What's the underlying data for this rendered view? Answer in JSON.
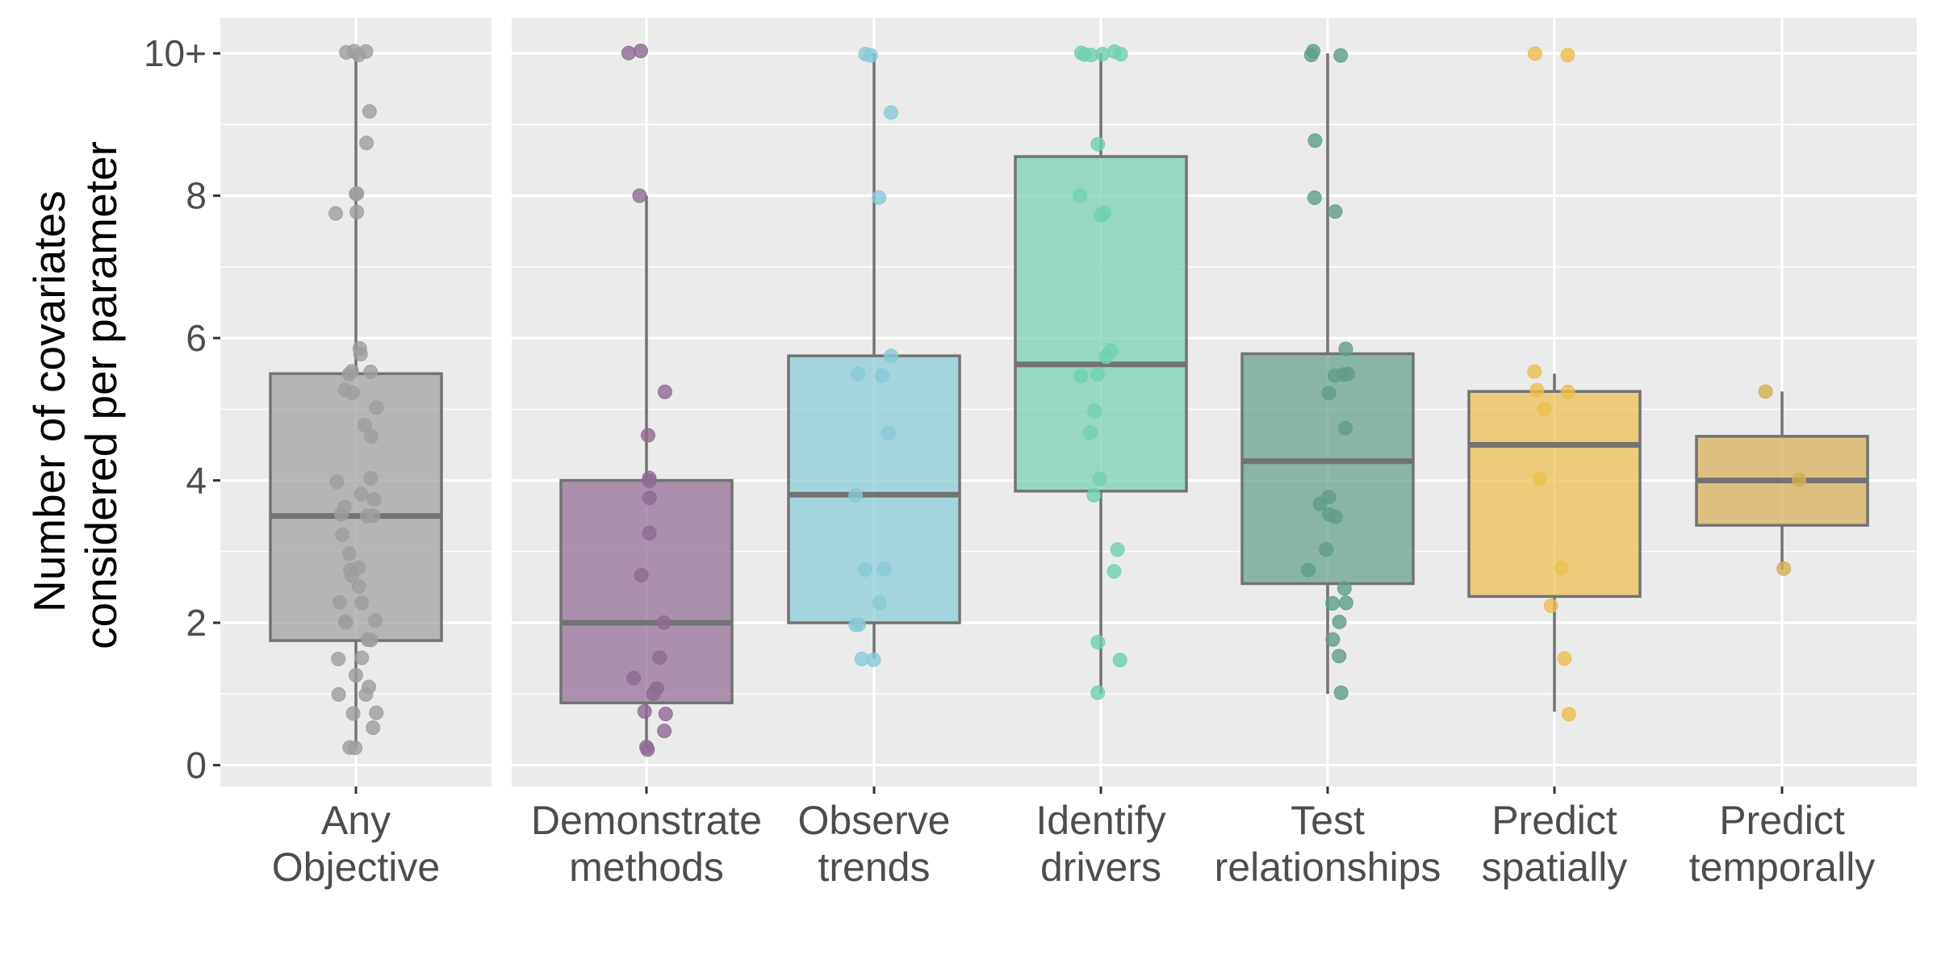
{
  "chart_data": {
    "type": "box",
    "xlabel": "",
    "ylabel_lines": [
      "Number of covariates",
      "considered per parameter"
    ],
    "ylim": [
      -0.3,
      10.5
    ],
    "y_ticks": [
      {
        "value": 0,
        "label": "0"
      },
      {
        "value": 2,
        "label": "2"
      },
      {
        "value": 4,
        "label": "4"
      },
      {
        "value": 6,
        "label": "6"
      },
      {
        "value": 8,
        "label": "8"
      },
      {
        "value": 10,
        "label": "10+"
      }
    ],
    "grid": true,
    "panels": [
      {
        "id": "overall",
        "categories": [
          "any"
        ]
      },
      {
        "id": "by-objective",
        "categories": [
          "demonstrate",
          "observe",
          "identify",
          "test",
          "predict-spatial",
          "predict-temporal"
        ]
      }
    ],
    "categories": [
      {
        "id": "any",
        "label_lines": [
          "Any",
          "Objective"
        ],
        "color": "#9E9E9E",
        "box": {
          "lower_whisker": 0.25,
          "q1": 1.75,
          "median": 3.5,
          "q3": 5.5,
          "upper_whisker": 10
        },
        "points": [
          10,
          10,
          10,
          10,
          9.2,
          8.75,
          8,
          8,
          7.75,
          7.75,
          5.85,
          5.75,
          5.5,
          5.5,
          5.5,
          5.25,
          5.25,
          5,
          4.75,
          4.65,
          4,
          4,
          3.8,
          3.75,
          3.65,
          3.5,
          3.5,
          3.5,
          3.25,
          3,
          2.75,
          2.75,
          2.65,
          2.5,
          2.3,
          2.25,
          2,
          2,
          2,
          1.75,
          1.75,
          1.5,
          1.5,
          1.25,
          1.1,
          1,
          1,
          0.75,
          0.75,
          0.5,
          0.25,
          0.25
        ]
      },
      {
        "id": "demonstrate",
        "label_lines": [
          "Demonstrate",
          "methods"
        ],
        "color": "#8E6A92",
        "box": {
          "lower_whisker": 0.25,
          "q1": 0.875,
          "median": 2,
          "q3": 4,
          "upper_whisker": 8
        },
        "points": [
          10,
          10,
          8,
          5.25,
          4.65,
          4,
          4,
          3.75,
          3.25,
          2.65,
          2,
          1.5,
          1.25,
          1.1,
          1,
          0.75,
          0.75,
          0.5,
          0.25,
          0.25
        ]
      },
      {
        "id": "observe",
        "label_lines": [
          "Observe",
          "trends"
        ],
        "color": "#86CAD6",
        "box": {
          "lower_whisker": 1.5,
          "q1": 2,
          "median": 3.8,
          "q3": 5.75,
          "upper_whisker": 10
        },
        "points": [
          10,
          10,
          9.2,
          8,
          5.75,
          5.5,
          5.5,
          4.65,
          3.8,
          2.75,
          2.75,
          2.25,
          2,
          2,
          1.5,
          1.5
        ]
      },
      {
        "id": "identify",
        "label_lines": [
          "Identify",
          "drivers"
        ],
        "color": "#6FD1AE",
        "box": {
          "lower_whisker": 1,
          "q1": 3.85,
          "median": 5.63,
          "q3": 8.55,
          "upper_whisker": 10
        },
        "points": [
          10,
          10,
          10,
          10,
          10,
          10,
          8.75,
          8,
          7.75,
          7.75,
          5.85,
          5.75,
          5.5,
          5.5,
          5,
          4.65,
          4,
          3.8,
          3,
          2.75,
          1.75,
          1.5,
          1
        ]
      },
      {
        "id": "test",
        "label_lines": [
          "Test",
          "relationships"
        ],
        "color": "#5F9E8A",
        "box": {
          "lower_whisker": 1,
          "q1": 2.55,
          "median": 4.27,
          "q3": 5.78,
          "upper_whisker": 10
        },
        "points": [
          10,
          10,
          10,
          8.75,
          8,
          7.75,
          5.85,
          5.5,
          5.5,
          5.5,
          5.25,
          4.75,
          3.8,
          3.65,
          3.5,
          3.5,
          3,
          2.75,
          2.5,
          2.3,
          2.25,
          2,
          1.75,
          1.5,
          1
        ]
      },
      {
        "id": "predict-spatial",
        "label_lines": [
          "Predict",
          "spatially"
        ],
        "color": "#EDBE4C",
        "box": {
          "lower_whisker": 0.75,
          "q1": 2.37,
          "median": 4.5,
          "q3": 5.25,
          "upper_whisker": 5.5
        },
        "points": [
          10,
          10,
          5.5,
          5.25,
          5.25,
          5,
          4,
          2.75,
          2.25,
          1.5,
          0.75
        ]
      },
      {
        "id": "predict-temporal",
        "label_lines": [
          "Predict",
          "temporally"
        ],
        "color": "#D4AE52",
        "box": {
          "lower_whisker": 2.75,
          "q1": 3.37,
          "median": 4,
          "q3": 4.62,
          "upper_whisker": 5.25
        },
        "points": [
          5.25,
          4,
          2.75
        ]
      }
    ]
  }
}
